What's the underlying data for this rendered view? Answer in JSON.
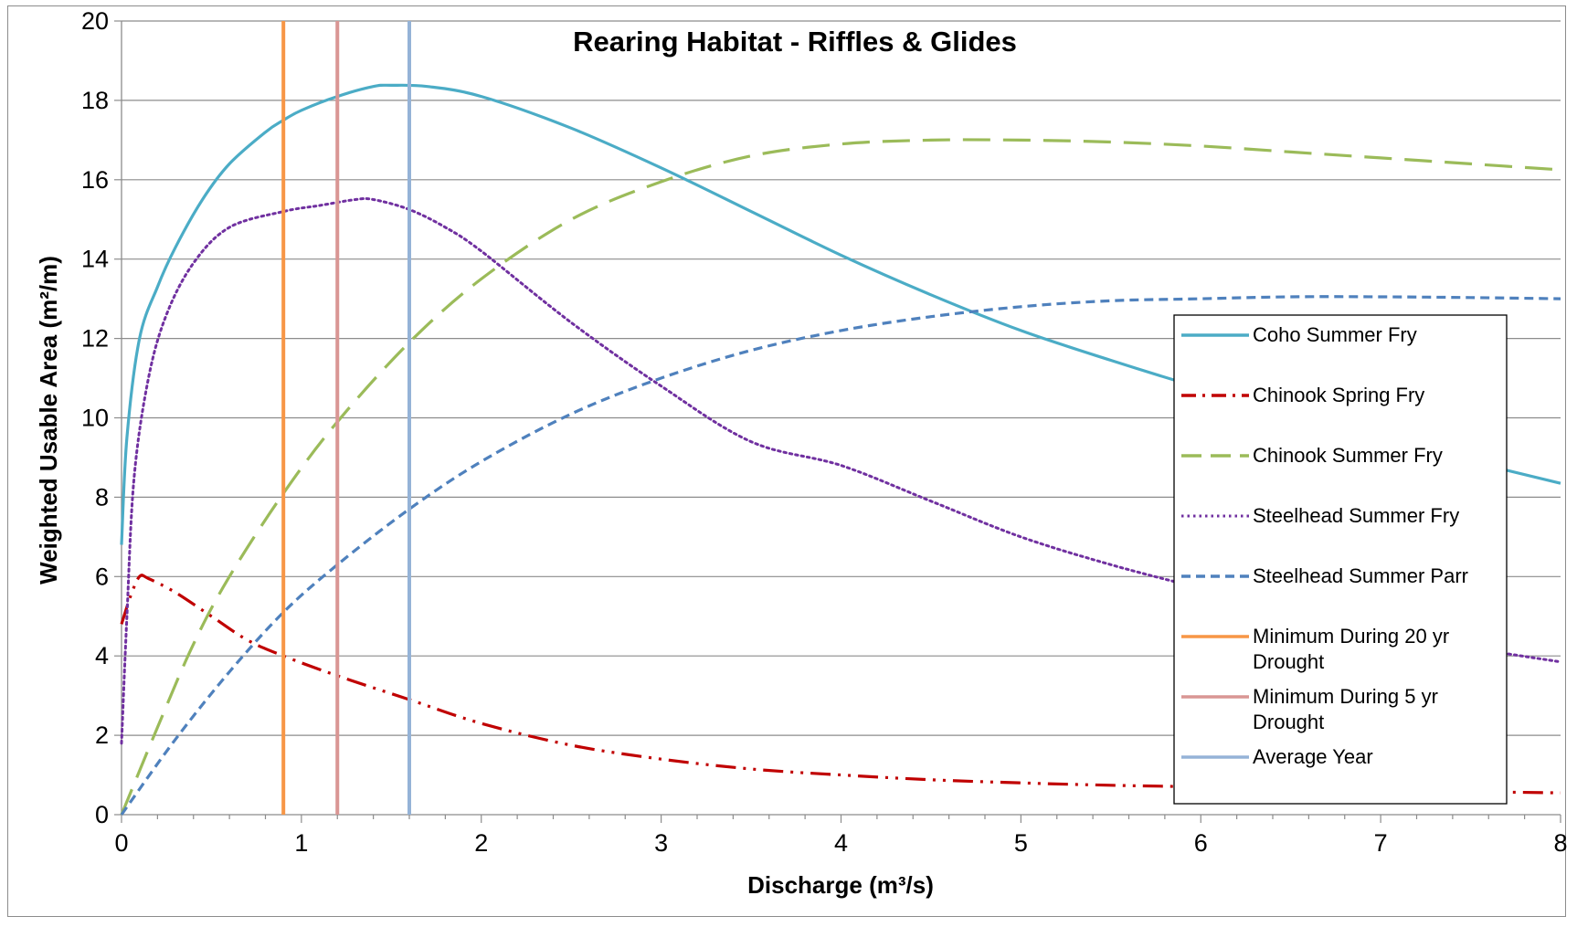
{
  "chart_data": {
    "type": "line",
    "title": "Rearing Habitat - Riffles & Glides",
    "xlabel": "Discharge (m³/s)",
    "ylabel": "Weighted Usable Area (m²/m)",
    "xlim": [
      0,
      8
    ],
    "ylim": [
      0,
      20
    ],
    "xticks": [
      "0",
      "1",
      "2",
      "3",
      "4",
      "5",
      "6",
      "7",
      "8"
    ],
    "yticks": [
      "0",
      "2",
      "4",
      "6",
      "8",
      "10",
      "12",
      "14",
      "16",
      "18",
      "20"
    ],
    "grid": "horizontal",
    "legend_position": "right",
    "series": [
      {
        "name": "Coho Summer Fry",
        "color": "#4bacc6",
        "dash": "solid",
        "x": [
          0,
          0.03,
          0.1,
          0.2,
          0.3,
          0.45,
          0.6,
          0.8,
          0.9,
          1.0,
          1.2,
          1.4,
          1.5,
          1.7,
          2.0,
          2.5,
          3.0,
          3.5,
          4.0,
          4.5,
          5.0,
          5.5,
          6.0,
          6.5,
          7.0,
          7.5,
          8.0
        ],
        "y": [
          6.8,
          9.5,
          12.0,
          13.3,
          14.3,
          15.5,
          16.4,
          17.2,
          17.5,
          17.75,
          18.1,
          18.35,
          18.38,
          18.35,
          18.1,
          17.3,
          16.3,
          15.2,
          14.1,
          13.1,
          12.2,
          11.45,
          10.75,
          10.1,
          9.45,
          8.9,
          8.35
        ]
      },
      {
        "name": "Chinook Spring Fry",
        "color": "#c00000",
        "dash": "dashdot",
        "x": [
          0,
          0.05,
          0.1,
          0.15,
          0.3,
          0.5,
          0.7,
          0.9,
          1.2,
          1.6,
          2.0,
          2.5,
          3.0,
          3.5,
          4.0,
          4.5,
          5.0,
          5.5,
          6.0,
          6.5,
          7.0,
          7.5,
          8.0
        ],
        "y": [
          4.8,
          5.5,
          6.0,
          5.95,
          5.6,
          5.0,
          4.4,
          4.0,
          3.5,
          2.9,
          2.3,
          1.75,
          1.4,
          1.15,
          1.0,
          0.88,
          0.8,
          0.74,
          0.7,
          0.65,
          0.62,
          0.58,
          0.55
        ]
      },
      {
        "name": "Chinook Summer Fry",
        "color": "#9bbb59",
        "dash": "longdash",
        "x": [
          0,
          0.2,
          0.4,
          0.6,
          0.9,
          1.2,
          1.6,
          2.0,
          2.5,
          3.0,
          3.5,
          4.0,
          4.5,
          5.0,
          5.5,
          6.0,
          6.5,
          7.0,
          7.5,
          8.0
        ],
        "y": [
          0,
          2.2,
          4.3,
          6.0,
          8.1,
          9.9,
          11.9,
          13.5,
          15.0,
          15.95,
          16.6,
          16.9,
          17.0,
          17.0,
          16.95,
          16.85,
          16.7,
          16.55,
          16.4,
          16.25
        ]
      },
      {
        "name": "Steelhead Summer Fry",
        "color": "#7030a0",
        "dash": "dotted",
        "x": [
          0,
          0.03,
          0.07,
          0.15,
          0.25,
          0.4,
          0.6,
          0.9,
          1.1,
          1.3,
          1.4,
          1.6,
          1.8,
          2.0,
          2.5,
          3.0,
          3.5,
          4.0,
          4.5,
          5.0,
          5.5,
          6.0,
          6.5,
          7.0,
          7.5,
          8.0
        ],
        "y": [
          1.8,
          5.0,
          8.5,
          11.0,
          12.6,
          13.9,
          14.8,
          15.2,
          15.35,
          15.5,
          15.5,
          15.25,
          14.8,
          14.2,
          12.4,
          10.8,
          9.4,
          8.8,
          7.9,
          7.0,
          6.3,
          5.7,
          5.1,
          4.6,
          4.2,
          3.85
        ]
      },
      {
        "name": "Steelhead Summer Parr",
        "color": "#4f81bd",
        "dash": "shortdash",
        "x": [
          0,
          0.3,
          0.6,
          0.9,
          1.2,
          1.6,
          2.0,
          2.5,
          3.0,
          3.5,
          4.0,
          4.5,
          5.0,
          5.5,
          6.0,
          6.5,
          7.0,
          7.5,
          8.0
        ],
        "y": [
          0,
          1.9,
          3.6,
          5.1,
          6.3,
          7.7,
          8.9,
          10.1,
          11.0,
          11.7,
          12.2,
          12.55,
          12.8,
          12.95,
          13.0,
          13.05,
          13.05,
          13.03,
          13.0
        ]
      }
    ],
    "vertical_lines": [
      {
        "name": "Minimum During 20 yr Drought",
        "x": 0.9,
        "color": "#f79646"
      },
      {
        "name": "Minimum During 5 yr Drought",
        "x": 1.2,
        "color": "#d99694"
      },
      {
        "name": "Average Year",
        "x": 1.6,
        "color": "#95b3d7"
      }
    ],
    "legend": [
      {
        "lines": [
          "Coho Summer Fry"
        ],
        "color": "#4bacc6",
        "dash": "solid"
      },
      {
        "lines": [
          "Chinook Spring Fry"
        ],
        "color": "#c00000",
        "dash": "dashdot"
      },
      {
        "lines": [
          "Chinook Summer Fry"
        ],
        "color": "#9bbb59",
        "dash": "longdash"
      },
      {
        "lines": [
          "Steelhead Summer Fry"
        ],
        "color": "#7030a0",
        "dash": "dotted"
      },
      {
        "lines": [
          "Steelhead Summer Parr"
        ],
        "color": "#4f81bd",
        "dash": "shortdash"
      },
      {
        "lines": [
          "Minimum During 20 yr",
          "Drought"
        ],
        "color": "#f79646",
        "dash": "solid"
      },
      {
        "lines": [
          "Minimum During 5 yr",
          "Drought"
        ],
        "color": "#d99694",
        "dash": "solid"
      },
      {
        "lines": [
          "Average Year"
        ],
        "color": "#95b3d7",
        "dash": "solid"
      }
    ]
  }
}
